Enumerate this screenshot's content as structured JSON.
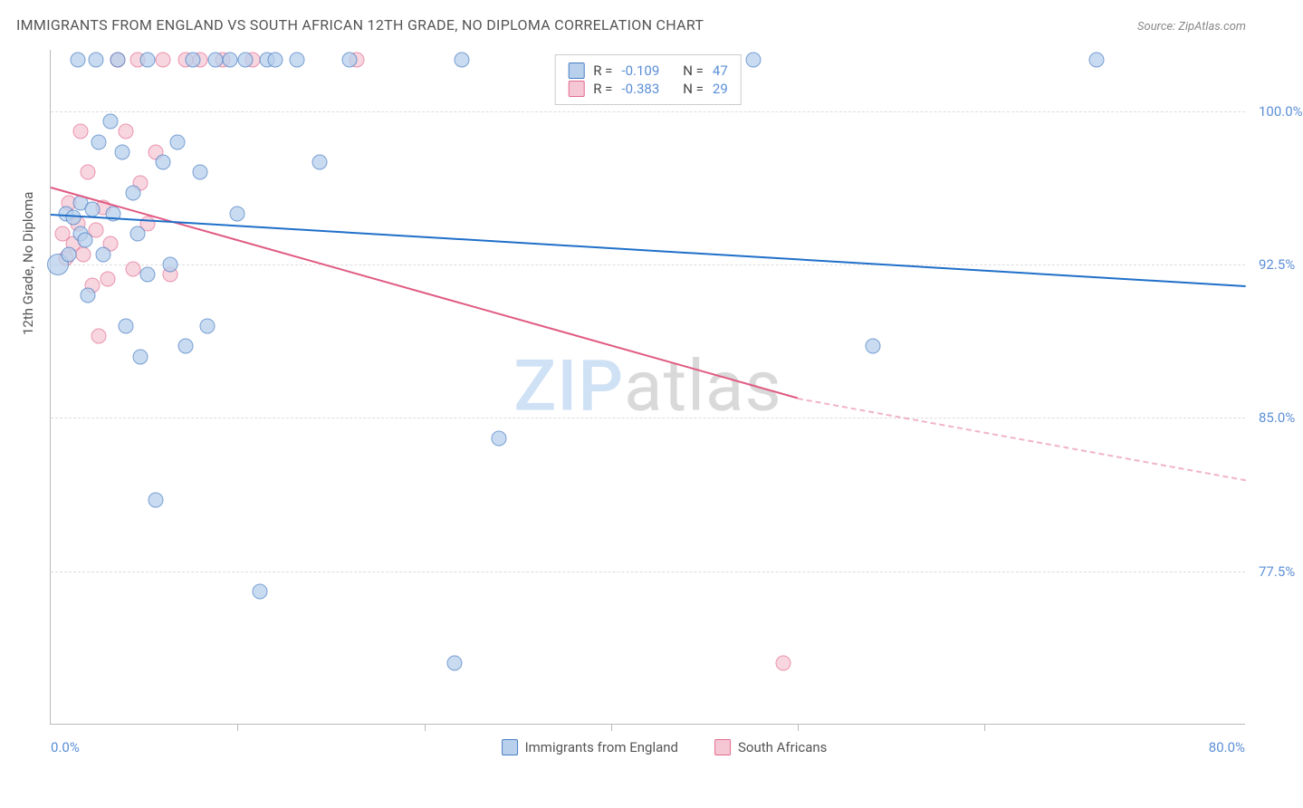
{
  "title": "IMMIGRANTS FROM ENGLAND VS SOUTH AFRICAN 12TH GRADE, NO DIPLOMA CORRELATION CHART",
  "source": "Source: ZipAtlas.com",
  "ylabel": "12th Grade, No Diploma",
  "watermark": {
    "part1": "ZIP",
    "part2": "atlas"
  },
  "xaxis": {
    "min": 0.0,
    "max": 80.0,
    "label_left": "0.0%",
    "label_right": "80.0%",
    "tick_positions": [
      0,
      12.5,
      25.0,
      37.5,
      50.0,
      62.5,
      80.0
    ]
  },
  "yaxis": {
    "min": 70.0,
    "max": 103.0,
    "ticks": [
      {
        "v": 100.0,
        "label": "100.0%"
      },
      {
        "v": 92.5,
        "label": "92.5%"
      },
      {
        "v": 85.0,
        "label": "85.0%"
      },
      {
        "v": 77.5,
        "label": "77.5%"
      }
    ]
  },
  "colors": {
    "blue_fill": "#b8d0ec",
    "blue_stroke": "#4a7fc5",
    "blue_line": "#1f6fc9",
    "pink_fill": "#f5c7d4",
    "pink_stroke": "#e26b8f",
    "pink_line": "#e05a82",
    "grid": "#dddddd",
    "axis": "#bbbbbb",
    "tick_text": "#5b8fd6",
    "title_text": "#555555"
  },
  "legend_top": {
    "rows": [
      {
        "swatch": "blue",
        "r_label": "R =",
        "r_val": "-0.109",
        "n_label": "N =",
        "n_val": "47"
      },
      {
        "swatch": "pink",
        "r_label": "R =",
        "r_val": "-0.383",
        "n_label": "N =",
        "n_val": "29"
      }
    ]
  },
  "legend_bottom": [
    {
      "swatch": "blue",
      "label": "Immigrants from England"
    },
    {
      "swatch": "pink",
      "label": "South Africans"
    }
  ],
  "series": {
    "england": {
      "color_fill": "#b8d0ec",
      "color_stroke": "#4a7fc5",
      "marker_r": 8.5,
      "marker_opacity": 0.75,
      "trend": {
        "x1": 0,
        "y1": 95.0,
        "x2": 80,
        "y2": 91.5,
        "width": 2.2
      },
      "points": [
        {
          "x": 0.5,
          "y": 92.5,
          "r": 12
        },
        {
          "x": 1.0,
          "y": 95.0
        },
        {
          "x": 1.2,
          "y": 93.0
        },
        {
          "x": 1.5,
          "y": 94.8
        },
        {
          "x": 1.8,
          "y": 102.5
        },
        {
          "x": 2.0,
          "y": 94.0
        },
        {
          "x": 2.0,
          "y": 95.5
        },
        {
          "x": 2.3,
          "y": 93.7
        },
        {
          "x": 2.5,
          "y": 91.0
        },
        {
          "x": 2.8,
          "y": 95.2
        },
        {
          "x": 3.0,
          "y": 102.5
        },
        {
          "x": 3.2,
          "y": 98.5
        },
        {
          "x": 3.5,
          "y": 93.0
        },
        {
          "x": 4.0,
          "y": 99.5
        },
        {
          "x": 4.2,
          "y": 95.0
        },
        {
          "x": 4.5,
          "y": 102.5
        },
        {
          "x": 4.8,
          "y": 98.0
        },
        {
          "x": 5.0,
          "y": 89.5
        },
        {
          "x": 5.5,
          "y": 96.0
        },
        {
          "x": 5.8,
          "y": 94.0
        },
        {
          "x": 6.0,
          "y": 88.0
        },
        {
          "x": 6.5,
          "y": 102.5
        },
        {
          "x": 6.5,
          "y": 92.0
        },
        {
          "x": 7.0,
          "y": 81.0
        },
        {
          "x": 7.5,
          "y": 97.5
        },
        {
          "x": 8.0,
          "y": 92.5
        },
        {
          "x": 8.5,
          "y": 98.5
        },
        {
          "x": 9.0,
          "y": 88.5
        },
        {
          "x": 9.5,
          "y": 102.5
        },
        {
          "x": 10.0,
          "y": 97.0
        },
        {
          "x": 10.5,
          "y": 89.5
        },
        {
          "x": 11.0,
          "y": 102.5
        },
        {
          "x": 12.0,
          "y": 102.5
        },
        {
          "x": 12.5,
          "y": 95.0
        },
        {
          "x": 13.0,
          "y": 102.5
        },
        {
          "x": 14.0,
          "y": 76.5
        },
        {
          "x": 14.5,
          "y": 102.5
        },
        {
          "x": 15.0,
          "y": 102.5
        },
        {
          "x": 16.5,
          "y": 102.5
        },
        {
          "x": 18.0,
          "y": 97.5
        },
        {
          "x": 20.0,
          "y": 102.5
        },
        {
          "x": 27.0,
          "y": 73.0
        },
        {
          "x": 27.5,
          "y": 102.5
        },
        {
          "x": 30.0,
          "y": 84.0
        },
        {
          "x": 47.0,
          "y": 102.5
        },
        {
          "x": 55.0,
          "y": 88.5
        },
        {
          "x": 70.0,
          "y": 102.5
        }
      ]
    },
    "southafrica": {
      "color_fill": "#f5c7d4",
      "color_stroke": "#e26b8f",
      "marker_r": 8.5,
      "marker_opacity": 0.72,
      "trend": {
        "x1": 0,
        "y1": 96.3,
        "x2": 50,
        "y2": 86.0,
        "width": 2.2,
        "ext_x2": 80,
        "ext_y2": 82.0
      },
      "points": [
        {
          "x": 0.8,
          "y": 94.0
        },
        {
          "x": 1.0,
          "y": 92.8
        },
        {
          "x": 1.2,
          "y": 95.5
        },
        {
          "x": 1.5,
          "y": 93.5
        },
        {
          "x": 1.8,
          "y": 94.5
        },
        {
          "x": 2.0,
          "y": 99.0
        },
        {
          "x": 2.2,
          "y": 93.0
        },
        {
          "x": 2.5,
          "y": 97.0
        },
        {
          "x": 2.8,
          "y": 91.5
        },
        {
          "x": 3.0,
          "y": 94.2
        },
        {
          "x": 3.2,
          "y": 89.0
        },
        {
          "x": 3.5,
          "y": 95.3
        },
        {
          "x": 3.8,
          "y": 91.8
        },
        {
          "x": 4.0,
          "y": 93.5
        },
        {
          "x": 4.5,
          "y": 102.5
        },
        {
          "x": 5.0,
          "y": 99.0
        },
        {
          "x": 5.5,
          "y": 92.3
        },
        {
          "x": 5.8,
          "y": 102.5
        },
        {
          "x": 6.0,
          "y": 96.5
        },
        {
          "x": 6.5,
          "y": 94.5
        },
        {
          "x": 7.0,
          "y": 98.0
        },
        {
          "x": 7.5,
          "y": 102.5
        },
        {
          "x": 8.0,
          "y": 92.0
        },
        {
          "x": 9.0,
          "y": 102.5
        },
        {
          "x": 10.0,
          "y": 102.5
        },
        {
          "x": 11.5,
          "y": 102.5
        },
        {
          "x": 13.5,
          "y": 102.5
        },
        {
          "x": 20.5,
          "y": 102.5
        },
        {
          "x": 49.0,
          "y": 73.0
        }
      ]
    }
  }
}
